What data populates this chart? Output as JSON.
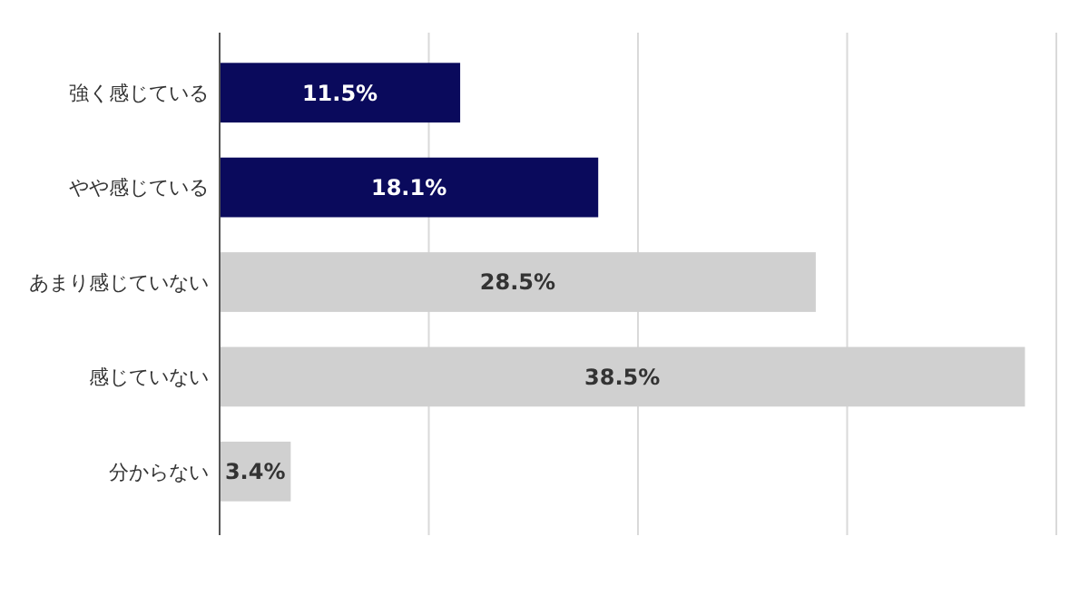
{
  "chart_data": {
    "type": "bar",
    "orientation": "horizontal",
    "categories": [
      "強く感じている",
      "やや感じている",
      "あまり感じていない",
      "感じていない",
      "分からない"
    ],
    "values": [
      11.5,
      18.1,
      28.5,
      38.5,
      3.4
    ],
    "colors": [
      "#0a0a5c",
      "#0a0a5c",
      "#d0d0d0",
      "#d0d0d0",
      "#d0d0d0"
    ],
    "value_labels": [
      "11.5%",
      "18.1%",
      "28.5%",
      "38.5%",
      "3.4%"
    ],
    "xlim": [
      0,
      40
    ],
    "xticks": [
      {
        "value": 0,
        "label": null
      },
      {
        "value": 10,
        "label": null
      },
      {
        "value": 20,
        "label": null
      },
      {
        "value": 30,
        "label": null
      },
      {
        "value": 40,
        "label": null
      }
    ],
    "tick_labels": "y",
    "grid": "x"
  }
}
